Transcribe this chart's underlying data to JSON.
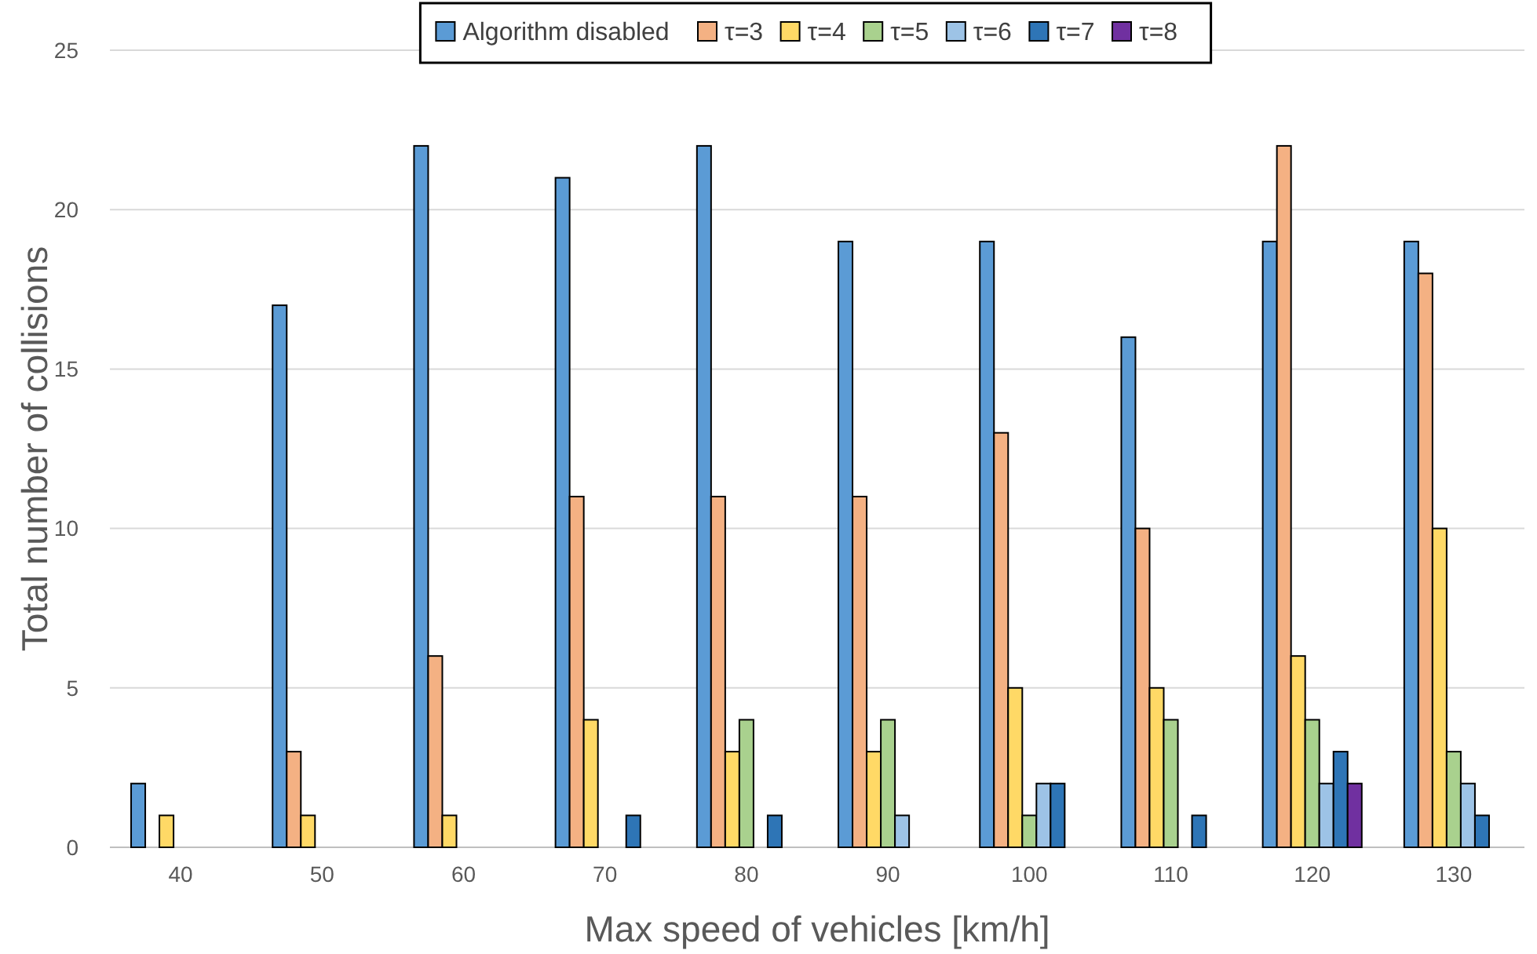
{
  "chart_data": {
    "type": "bar",
    "xlabel": "Max speed of vehicles [km/h]",
    "ylabel": "Total number of collisions",
    "categories": [
      "40",
      "50",
      "60",
      "70",
      "80",
      "90",
      "100",
      "110",
      "120",
      "130"
    ],
    "series": [
      {
        "name": "Algorithm disabled",
        "color": "#5b9bd5",
        "values": [
          2,
          17,
          22,
          21,
          22,
          19,
          19,
          16,
          19,
          19
        ]
      },
      {
        "name": "τ=3",
        "color": "#f4b183",
        "values": [
          0,
          3,
          6,
          11,
          11,
          11,
          13,
          10,
          22,
          18
        ]
      },
      {
        "name": "τ=4",
        "color": "#ffd966",
        "values": [
          1,
          1,
          1,
          4,
          3,
          3,
          5,
          5,
          6,
          10
        ]
      },
      {
        "name": "τ=5",
        "color": "#a9d18e",
        "values": [
          0,
          0,
          0,
          0,
          4,
          4,
          1,
          4,
          4,
          3
        ]
      },
      {
        "name": "τ=6",
        "color": "#9dc3e6",
        "values": [
          0,
          0,
          0,
          0,
          0,
          1,
          2,
          0,
          2,
          2
        ]
      },
      {
        "name": "τ=7",
        "color": "#2e75b6",
        "values": [
          0,
          0,
          0,
          1,
          1,
          0,
          2,
          1,
          3,
          1
        ]
      },
      {
        "name": "τ=8",
        "color": "#7030a0",
        "values": [
          0,
          0,
          0,
          0,
          0,
          0,
          0,
          0,
          2,
          0
        ]
      }
    ],
    "ylim": [
      0,
      25
    ],
    "yticks": [
      0,
      5,
      10,
      15,
      20,
      25
    ],
    "grid": "y",
    "legend": "top"
  }
}
